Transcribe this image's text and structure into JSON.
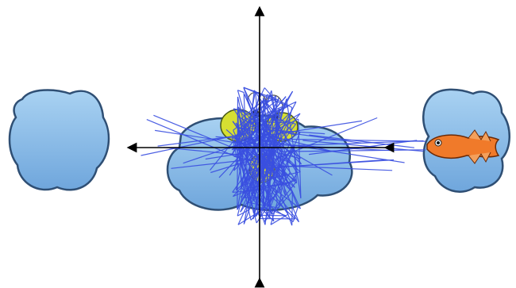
{
  "scene": {
    "icons": {
      "left_puddle": "water-puddle-icon",
      "center_puddle": "water-puddle-icon",
      "right_puddle": "water-puddle-icon",
      "creature": "frog-icon",
      "goal": "fish-icon"
    },
    "colors": {
      "puddle_fill": "#8ec0ea",
      "puddle_stroke": "#2f4f74",
      "trajectory": "#3a4fe0",
      "axis": "#000000",
      "frog_yellow": "#d6df32",
      "fish_orange": "#f07a2a"
    },
    "trajectory": {
      "segment_count": 220,
      "seed": 7
    }
  }
}
